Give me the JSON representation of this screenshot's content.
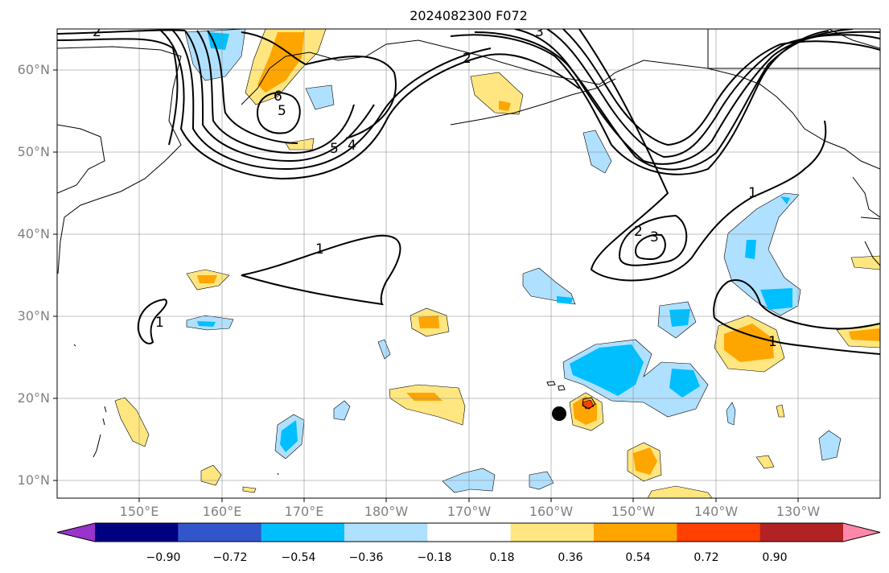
{
  "title": "2024082300 F072",
  "lat_labels": [
    "60°N",
    "50°N",
    "40°N",
    "30°N",
    "20°N",
    "10°N"
  ],
  "lon_labels": [
    "150°E",
    "160°E",
    "170°E",
    "180°W",
    "170°W",
    "160°W",
    "150°W",
    "140°W",
    "130°W"
  ],
  "colorbar": {
    "colors": [
      "#9933cc",
      "#000080",
      "#3355cc",
      "#00bfff",
      "#b0e0ff",
      "#ffffff",
      "#ffe680",
      "#ffa500",
      "#ff4000",
      "#b22222",
      "#ff88aa"
    ],
    "labels": [
      "−0.90",
      "−0.72",
      "−0.54",
      "−0.36",
      "−0.18",
      "0.18",
      "0.36",
      "0.54",
      "0.72",
      "0.90"
    ]
  },
  "contour_labels": [
    "2",
    "6",
    "5",
    "5",
    "4",
    "2",
    "3",
    "1",
    "2",
    "3",
    "1",
    "1",
    "1"
  ],
  "marker": "storm-center-dot"
}
